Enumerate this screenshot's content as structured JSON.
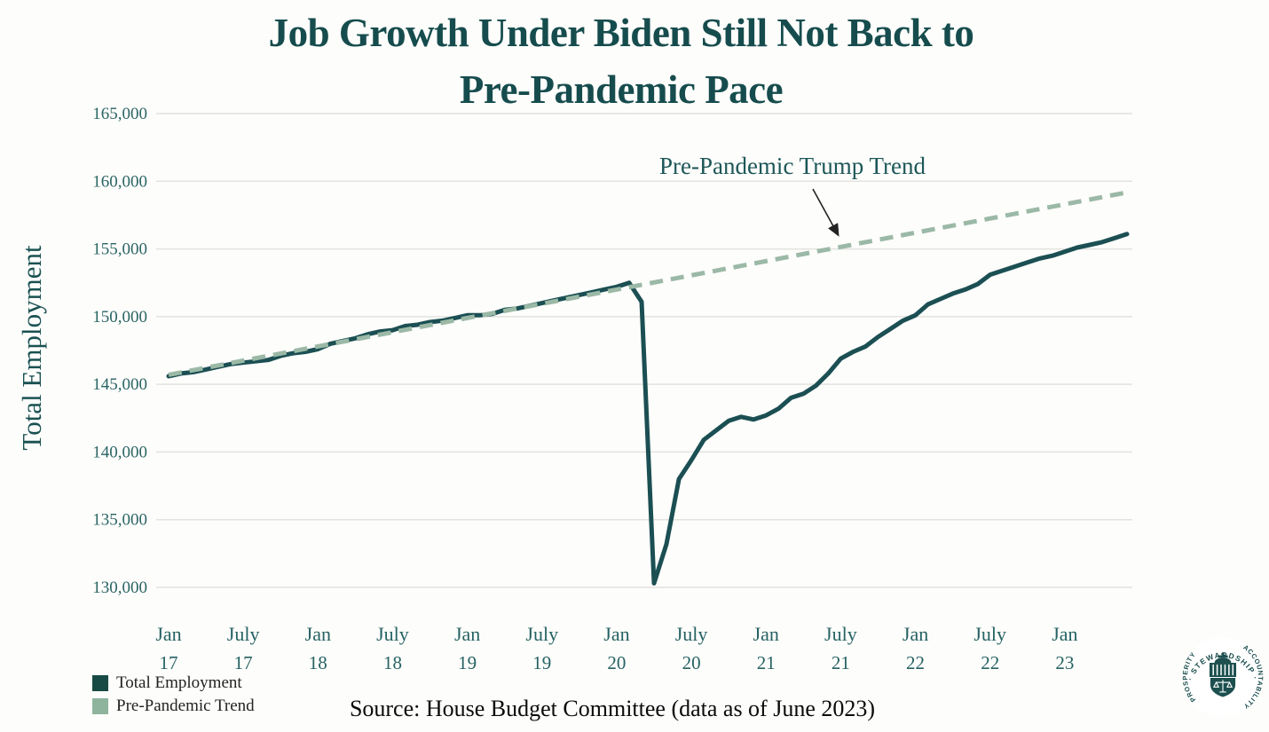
{
  "title": {
    "line1": "Job Growth Under Biden Still Not Back to",
    "line2": "Pre-Pandemic Pace"
  },
  "axes": {
    "y_title": "Total Employment"
  },
  "annotation": {
    "text": "Pre-Pandemic Trump Trend"
  },
  "legend": {
    "items": [
      {
        "label": "Total Employment",
        "color": "#174a45"
      },
      {
        "label": "Pre-Pandemic Trend",
        "color": "#8eb49d"
      }
    ]
  },
  "source": {
    "text": "Source: House Budget Committee (data as of June 2023)"
  },
  "logo": {
    "ring_top": "· STEWARDSHIP ·",
    "ring_right": "ACCOUNTABILITY",
    "ring_left": "PROSPERITY",
    "color": "#1d4f4f"
  },
  "chart_data": {
    "type": "line",
    "title": "Job Growth Under Biden Still Not Back to Pre-Pandemic Pace",
    "xlabel": "",
    "ylabel": "Total Employment",
    "ylim": [
      130000,
      165000
    ],
    "grid": true,
    "legend_position": "bottom-left",
    "x_start": "Jan 2017",
    "x_end": "June 2023",
    "y_ticks": [
      {
        "value": 165000,
        "label": "165,000"
      },
      {
        "value": 160000,
        "label": "160,000"
      },
      {
        "value": 155000,
        "label": "155,000"
      },
      {
        "value": 150000,
        "label": "150,000"
      },
      {
        "value": 145000,
        "label": "145,000"
      },
      {
        "value": 140000,
        "label": "140,000"
      },
      {
        "value": 135000,
        "label": "135,000"
      },
      {
        "value": 130000,
        "label": "130,000"
      }
    ],
    "x_ticks": [
      {
        "month_index": 0,
        "month": "Jan",
        "year": "17"
      },
      {
        "month_index": 6,
        "month": "July",
        "year": "17"
      },
      {
        "month_index": 12,
        "month": "Jan",
        "year": "18"
      },
      {
        "month_index": 18,
        "month": "July",
        "year": "18"
      },
      {
        "month_index": 24,
        "month": "Jan",
        "year": "19"
      },
      {
        "month_index": 30,
        "month": "July",
        "year": "19"
      },
      {
        "month_index": 36,
        "month": "Jan",
        "year": "20"
      },
      {
        "month_index": 42,
        "month": "July",
        "year": "20"
      },
      {
        "month_index": 48,
        "month": "Jan",
        "year": "21"
      },
      {
        "month_index": 54,
        "month": "July",
        "year": "21"
      },
      {
        "month_index": 60,
        "month": "Jan",
        "year": "22"
      },
      {
        "month_index": 66,
        "month": "July",
        "year": "22"
      },
      {
        "month_index": 72,
        "month": "Jan",
        "year": "23"
      }
    ],
    "series": [
      {
        "name": "Total Employment",
        "style": "solid",
        "color": "#1b4f53",
        "start_month": "Jan 2017",
        "monthly_values": [
          145600,
          145800,
          145900,
          146100,
          146300,
          146500,
          146600,
          146700,
          146800,
          147100,
          147300,
          147400,
          147600,
          148000,
          148200,
          148400,
          148700,
          148900,
          149000,
          149300,
          149400,
          149600,
          149700,
          149900,
          150100,
          150100,
          150200,
          150500,
          150600,
          150800,
          151000,
          151200,
          151400,
          151600,
          151800,
          152000,
          152200,
          152500,
          151100,
          130300,
          133200,
          138000,
          139400,
          140900,
          141600,
          142300,
          142600,
          142400,
          142700,
          143200,
          144000,
          144300,
          144900,
          145800,
          146900,
          147400,
          147800,
          148500,
          149100,
          149700,
          150100,
          150900,
          151300,
          151700,
          152000,
          152400,
          153100,
          153400,
          153700,
          154000,
          154300,
          154500,
          154800,
          155100,
          155300,
          155500,
          155800,
          156100
        ]
      },
      {
        "name": "Pre-Pandemic Trend",
        "style": "dashed",
        "color": "#9bb9a6",
        "linear": {
          "start_month_index": 0,
          "end_month_index": 77,
          "start_value": 145700,
          "end_value": 159175
        }
      }
    ],
    "annotation": {
      "text": "Pre-Pandemic Trump Trend",
      "points_to": "Pre-Pandemic Trend"
    }
  }
}
